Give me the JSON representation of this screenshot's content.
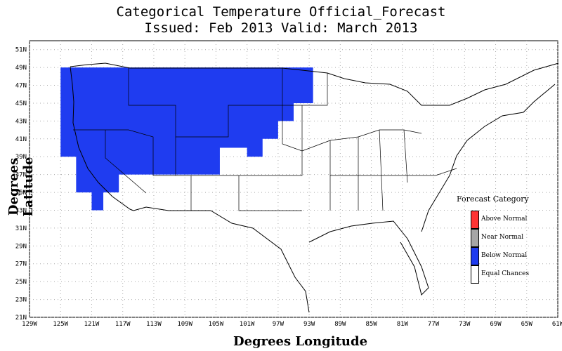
{
  "title": {
    "line1": "Categorical Temperature Official_Forecast",
    "line2": "Issued: Feb 2013 Valid: March 2013"
  },
  "axes": {
    "xlabel": "Degrees Longitude",
    "ylabel": "Degrees Latitude",
    "xticks": [
      "129W",
      "125W",
      "121W",
      "117W",
      "113W",
      "109W",
      "105W",
      "101W",
      "97W",
      "93W",
      "89W",
      "85W",
      "81W",
      "77W",
      "73W",
      "69W",
      "65W",
      "61W"
    ],
    "yticks": [
      "21N",
      "23N",
      "25N",
      "27N",
      "29N",
      "31N",
      "33N",
      "35N",
      "37N",
      "39N",
      "41N",
      "43N",
      "45N",
      "47N",
      "49N",
      "51N"
    ],
    "xrange": [
      -129,
      -61
    ],
    "yrange": [
      21,
      52
    ],
    "grid": true
  },
  "legend": {
    "title": "Forecast Category",
    "placement": "lower-right",
    "items": [
      {
        "label": "Above Normal",
        "color": "#ff3333"
      },
      {
        "label": "Near Normal",
        "color": "#a6a6a6"
      },
      {
        "label": "Below Normal",
        "color": "#1f3cf0"
      },
      {
        "label": "Equal Chances",
        "color": "#ffffff"
      }
    ]
  },
  "forecast_regions": [
    {
      "category": "Below Normal",
      "color": "#1f3cf0",
      "polygon_lonlat": [
        [
          -125,
          49
        ],
        [
          -92.5,
          49
        ],
        [
          -92.5,
          45
        ],
        [
          -95,
          45
        ],
        [
          -95,
          43
        ],
        [
          -97,
          43
        ],
        [
          -97,
          41
        ],
        [
          -99,
          41
        ],
        [
          -99,
          39
        ],
        [
          -101,
          39
        ],
        [
          -101,
          40
        ],
        [
          -104.5,
          40
        ],
        [
          -104.5,
          37
        ],
        [
          -117.5,
          37
        ],
        [
          -117.5,
          35
        ],
        [
          -119.5,
          35
        ],
        [
          -119.5,
          33
        ],
        [
          -121,
          33
        ],
        [
          -121,
          35
        ],
        [
          -123,
          35
        ],
        [
          -123,
          39
        ],
        [
          -125,
          39
        ]
      ]
    }
  ]
}
